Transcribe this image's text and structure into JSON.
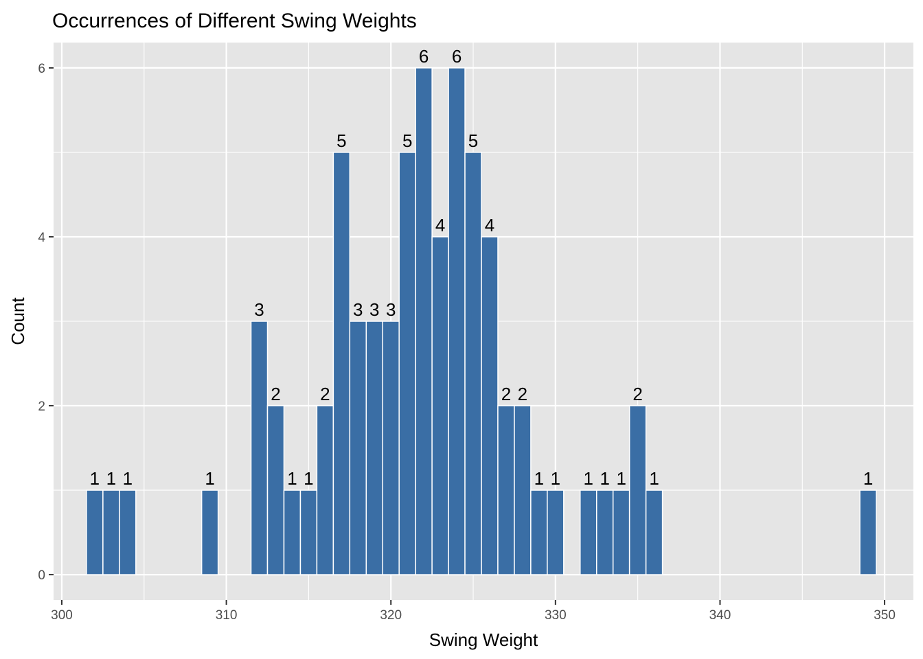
{
  "chart_data": {
    "type": "bar",
    "title": "Occurrences of Different Swing Weights",
    "xlabel": "Swing Weight",
    "ylabel": "Count",
    "xlim": [
      299.5,
      351.75
    ],
    "ylim": [
      -0.3,
      6.3
    ],
    "x_ticks": [
      300,
      310,
      320,
      330,
      340,
      350
    ],
    "y_ticks": [
      0,
      2,
      4,
      6
    ],
    "x_minor_ticks": [
      305,
      315,
      325,
      335,
      345
    ],
    "y_minor_ticks": [
      1,
      3,
      5
    ],
    "bar_color": "#3A6EA5",
    "panel_color": "#E5E5E5",
    "grid": true,
    "bars": [
      {
        "x": 302,
        "count": 1
      },
      {
        "x": 303,
        "count": 1
      },
      {
        "x": 304,
        "count": 1
      },
      {
        "x": 309,
        "count": 1
      },
      {
        "x": 312,
        "count": 3
      },
      {
        "x": 313,
        "count": 2
      },
      {
        "x": 314,
        "count": 1
      },
      {
        "x": 315,
        "count": 1
      },
      {
        "x": 316,
        "count": 2
      },
      {
        "x": 317,
        "count": 5
      },
      {
        "x": 318,
        "count": 3
      },
      {
        "x": 319,
        "count": 3
      },
      {
        "x": 320,
        "count": 3
      },
      {
        "x": 321,
        "count": 5
      },
      {
        "x": 322,
        "count": 6
      },
      {
        "x": 323,
        "count": 4
      },
      {
        "x": 324,
        "count": 6
      },
      {
        "x": 325,
        "count": 5
      },
      {
        "x": 326,
        "count": 4
      },
      {
        "x": 327,
        "count": 2
      },
      {
        "x": 328,
        "count": 2
      },
      {
        "x": 329,
        "count": 1
      },
      {
        "x": 330,
        "count": 1
      },
      {
        "x": 332,
        "count": 1
      },
      {
        "x": 333,
        "count": 1
      },
      {
        "x": 334,
        "count": 1
      },
      {
        "x": 335,
        "count": 2
      },
      {
        "x": 336,
        "count": 1
      },
      {
        "x": 349,
        "count": 1
      }
    ]
  }
}
